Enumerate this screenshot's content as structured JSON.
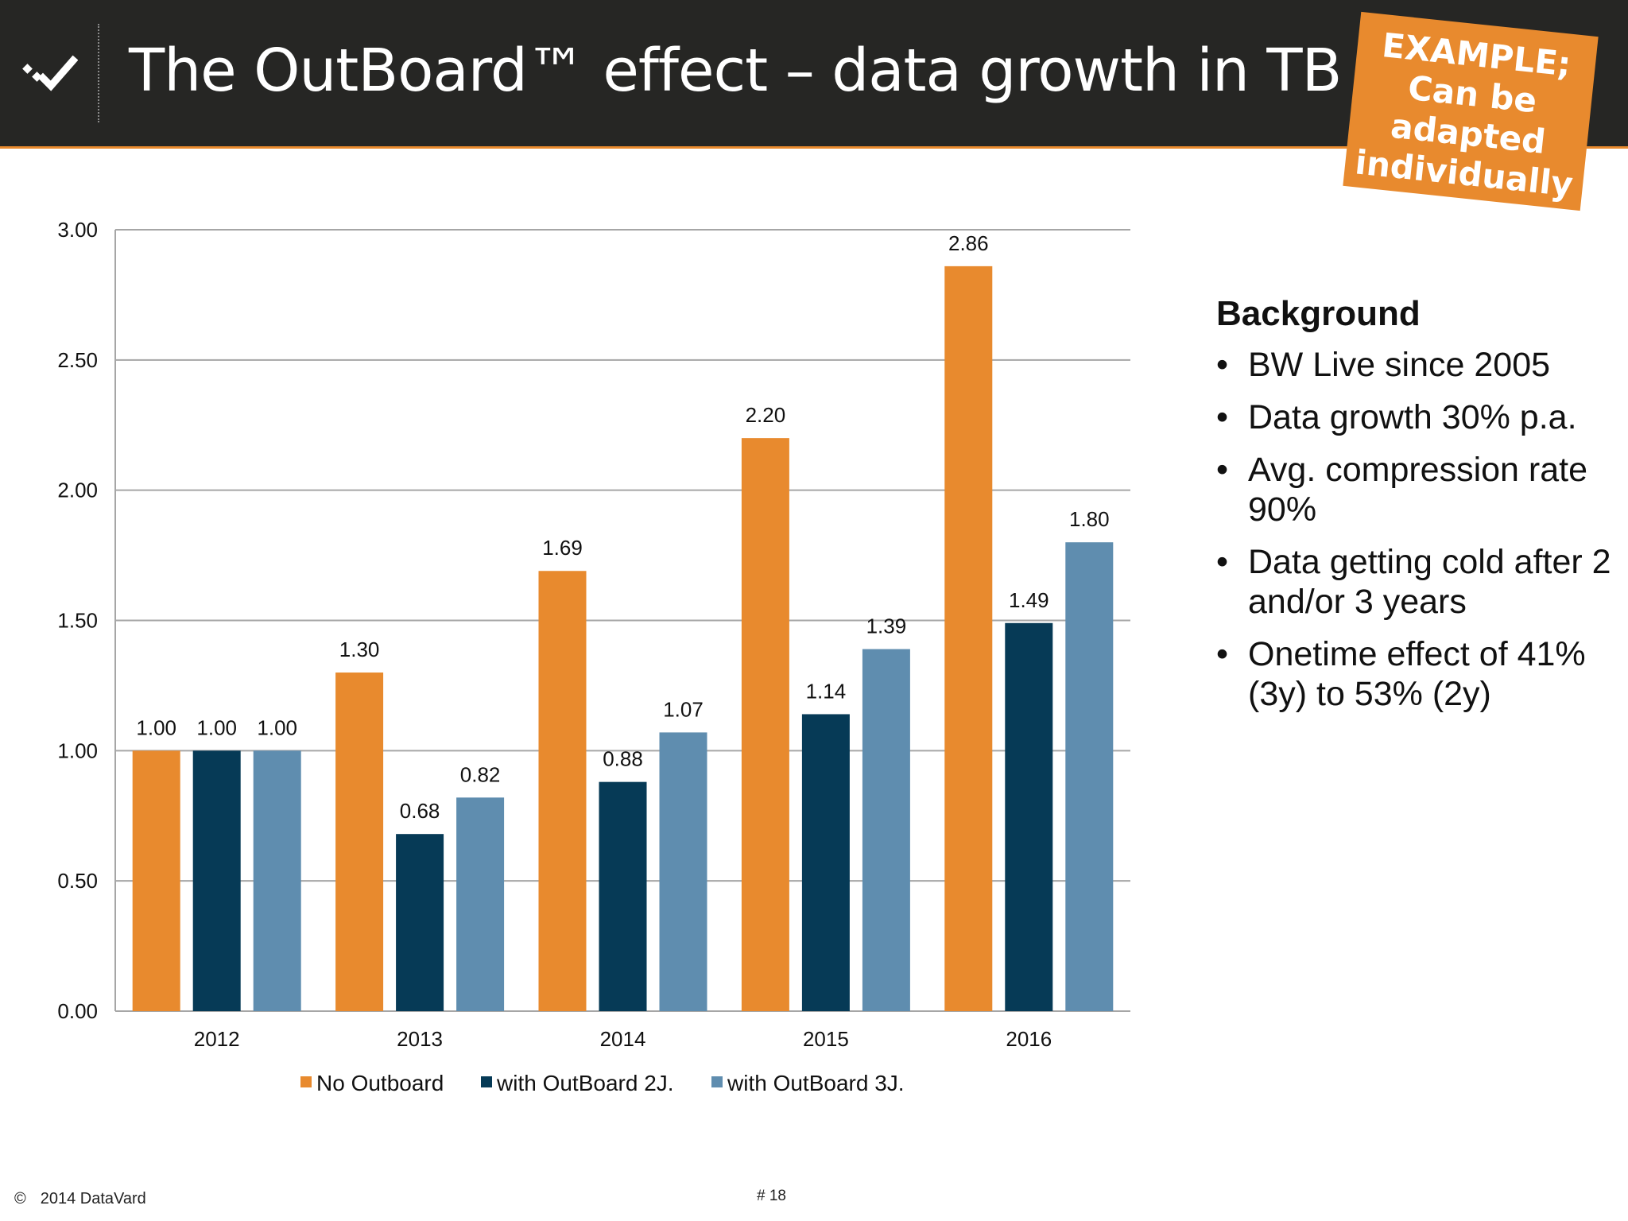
{
  "header": {
    "title": "The OutBoard™ effect – data growth in TB",
    "logo_icon": "checkmark-logo-icon"
  },
  "badge": {
    "lines": [
      "EXAMPLE;",
      "Can be",
      "adapted",
      "individually"
    ]
  },
  "colors": {
    "header_bg": "#262624",
    "accent": "#e88a2e",
    "series_no_outboard": "#e88a2e",
    "series_2j": "#063a56",
    "series_3j": "#5f8daf",
    "grid": "#a6a6a6"
  },
  "chart_data": {
    "type": "bar",
    "categories": [
      "2012",
      "2013",
      "2014",
      "2015",
      "2016"
    ],
    "series": [
      {
        "name": "No Outboard",
        "values": [
          1.0,
          1.3,
          1.69,
          2.2,
          2.86
        ],
        "labels": [
          "1.00",
          "1.30",
          "1.69",
          "2.20",
          "2.86"
        ]
      },
      {
        "name": "with OutBoard 2J.",
        "values": [
          1.0,
          0.68,
          0.88,
          1.14,
          1.49
        ],
        "labels": [
          "1.00",
          "0.68",
          "0.88",
          "1.14",
          "1.49"
        ]
      },
      {
        "name": "with OutBoard 3J.",
        "values": [
          1.0,
          0.82,
          1.07,
          1.39,
          1.8
        ],
        "labels": [
          "1.00",
          "0.82",
          "1.07",
          "1.39",
          "1.80"
        ]
      }
    ],
    "ylim": [
      0,
      3
    ],
    "yticks": [
      "0.00",
      "0.50",
      "1.00",
      "1.50",
      "2.00",
      "2.50",
      "3.00"
    ],
    "grid": true,
    "legend_position": "bottom",
    "title": "",
    "xlabel": "",
    "ylabel": ""
  },
  "background": {
    "heading": "Background",
    "bullet": "•",
    "items": [
      "BW Live since 2005",
      "Data growth 30% p.a.",
      "Avg. compression rate 90%",
      "Data getting cold after 2 and/or 3 years",
      "Onetime effect of 41% (3y) to 53% (2y)"
    ]
  },
  "footer": {
    "copyright_symbol": "©",
    "copyright_text": "2014 DataVard",
    "page_number": "# 18"
  }
}
